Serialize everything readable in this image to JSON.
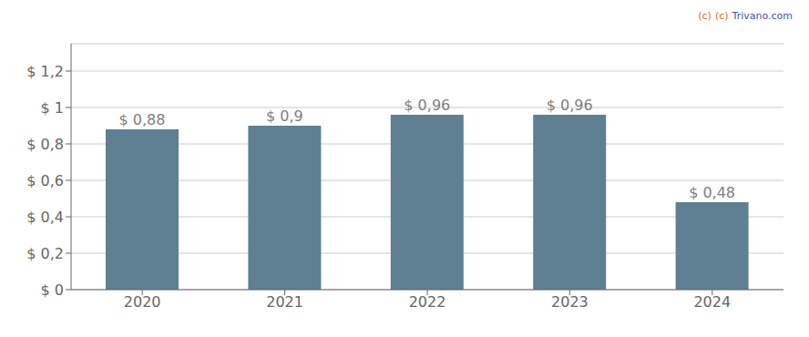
{
  "chart_data": {
    "type": "bar",
    "categories": [
      "2020",
      "2021",
      "2022",
      "2023",
      "2024"
    ],
    "values": [
      0.88,
      0.9,
      0.96,
      0.96,
      0.48
    ],
    "value_labels": [
      "$ 0,88",
      "$ 0,9",
      "$ 0,96",
      "$ 0,96",
      "$ 0,48"
    ],
    "color": "#5f7f93",
    "ylim": [
      0,
      1.35
    ],
    "yticks": [
      {
        "value": 0,
        "label": "$ 0"
      },
      {
        "value": 0.2,
        "label": "$ 0,2"
      },
      {
        "value": 0.4,
        "label": "$ 0,4"
      },
      {
        "value": 0.6,
        "label": "$ 0,6"
      },
      {
        "value": 0.8,
        "label": "$ 0,8"
      },
      {
        "value": 1.0,
        "label": "$ 1"
      },
      {
        "value": 1.2,
        "label": "$ 1,2"
      }
    ],
    "grid": true,
    "data_labels": true,
    "annotations": [
      {
        "text": "(c)",
        "color": "#e07020"
      },
      {
        "text": "(c)",
        "color": "#e07020"
      },
      {
        "text": "Trivano.com",
        "color": "#4455aa"
      }
    ]
  }
}
